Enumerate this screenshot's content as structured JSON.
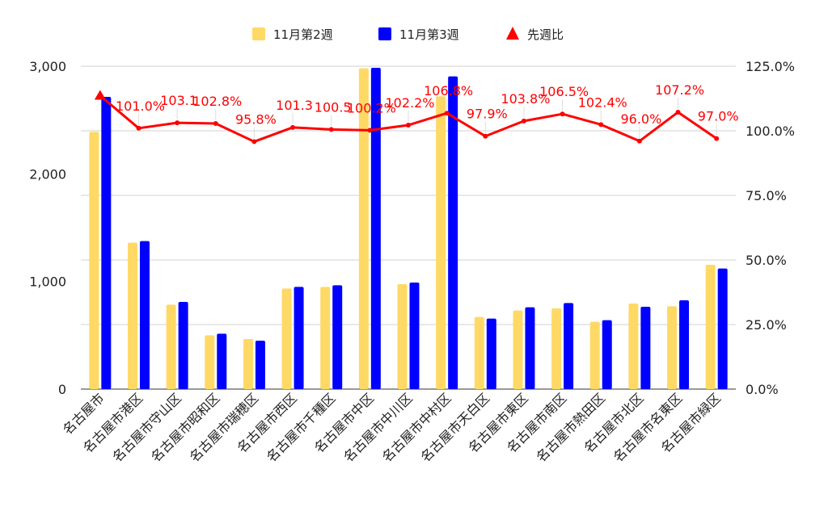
{
  "chart_data": {
    "type": "bar",
    "categories": [
      "名古屋市",
      "名古屋市港区",
      "名古屋市守山区",
      "名古屋市昭和区",
      "名古屋市瑞穂区",
      "名古屋市西区",
      "名古屋市千種区",
      "名古屋市中区",
      "名古屋市中川区",
      "名古屋市中村区",
      "名古屋市天白区",
      "名古屋市東区",
      "名古屋市南区",
      "名古屋市熱田区",
      "名古屋市北区",
      "名古屋市名東区",
      "名古屋市緑区"
    ],
    "series": [
      {
        "name": "11月第2週",
        "type": "bar",
        "axis": "left",
        "color": "#FFD966",
        "values": [
          2390,
          1360,
          785,
          500,
          465,
          935,
          950,
          2980,
          975,
          2720,
          670,
          730,
          750,
          625,
          795,
          770,
          1155
        ]
      },
      {
        "name": "11月第3週",
        "type": "bar",
        "axis": "left",
        "color": "#0000FF",
        "values": [
          2715,
          1375,
          810,
          515,
          450,
          950,
          965,
          2985,
          990,
          2905,
          655,
          760,
          800,
          640,
          765,
          825,
          1120
        ]
      },
      {
        "name": "先週比",
        "type": "line",
        "axis": "right",
        "color": "#FF0000",
        "marker": "triangle",
        "values": [
          113.6,
          101.0,
          103.1,
          102.8,
          95.8,
          101.3,
          100.5,
          100.2,
          102.2,
          106.8,
          97.9,
          103.8,
          106.5,
          102.4,
          96.0,
          107.2,
          97.0
        ],
        "labels": [
          "",
          "101.0%",
          "103.1",
          "102.8%",
          "95.8%",
          "101.3",
          "100.5",
          "100.2%",
          "102.2%",
          "106.8%",
          "97.9%",
          "103.8%",
          "106.5%",
          "102.4%",
          "96.0%",
          "107.2%",
          "97.0%"
        ]
      }
    ],
    "y_left": {
      "min": 0,
      "max": 3000,
      "ticks": [
        "0",
        "1,000",
        "2,000",
        "3,000"
      ],
      "tick_values": [
        0,
        1000,
        2000,
        3000
      ]
    },
    "y_right": {
      "min": 0,
      "max": 125,
      "ticks": [
        "0.0%",
        "25.0%",
        "50.0%",
        "75.0%",
        "100.0%",
        "125.0%"
      ],
      "tick_values": [
        0,
        25,
        50,
        75,
        100,
        125
      ]
    },
    "grid": true,
    "legend_position": "top"
  }
}
